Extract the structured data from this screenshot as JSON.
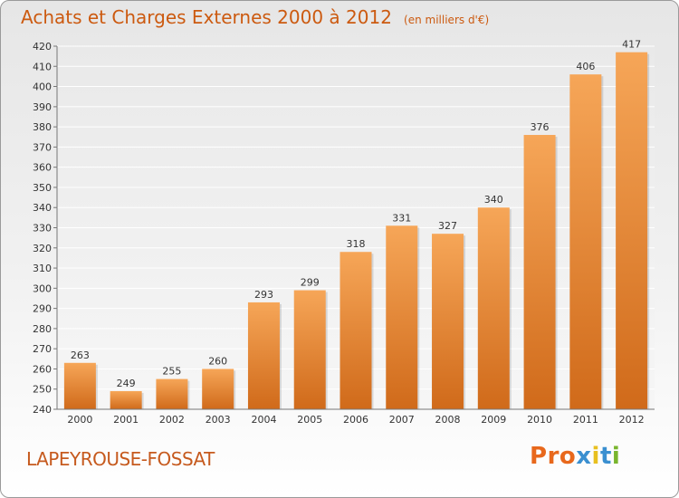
{
  "header": {
    "title": "Achats et Charges Externes 2000 à 2012",
    "subtitle": "(en milliers d'€)"
  },
  "footer": {
    "commune": "LAPEYROUSE-FOSSAT",
    "logo_text": "Proxiti"
  },
  "colors": {
    "title": "#cc5a10",
    "bar_light": "#f6a658",
    "bar_dark": "#d06a1a",
    "logo_letters": [
      "#e8681c",
      "#e8681c",
      "#e8681c",
      "#3a8fd0",
      "#e8c020",
      "#3a8fd0",
      "#79b52e"
    ]
  },
  "chart_data": {
    "type": "bar",
    "categories": [
      "2000",
      "2001",
      "2002",
      "2003",
      "2004",
      "2005",
      "2006",
      "2007",
      "2008",
      "2009",
      "2010",
      "2011",
      "2012"
    ],
    "values": [
      263,
      249,
      255,
      260,
      293,
      299,
      318,
      331,
      327,
      340,
      376,
      406,
      417
    ],
    "ylim": [
      240,
      420
    ],
    "yticks": [
      240,
      250,
      260,
      270,
      280,
      290,
      300,
      310,
      320,
      330,
      340,
      350,
      360,
      370,
      380,
      390,
      400,
      410,
      420
    ],
    "grid": "horizontal",
    "data_labels": true
  }
}
